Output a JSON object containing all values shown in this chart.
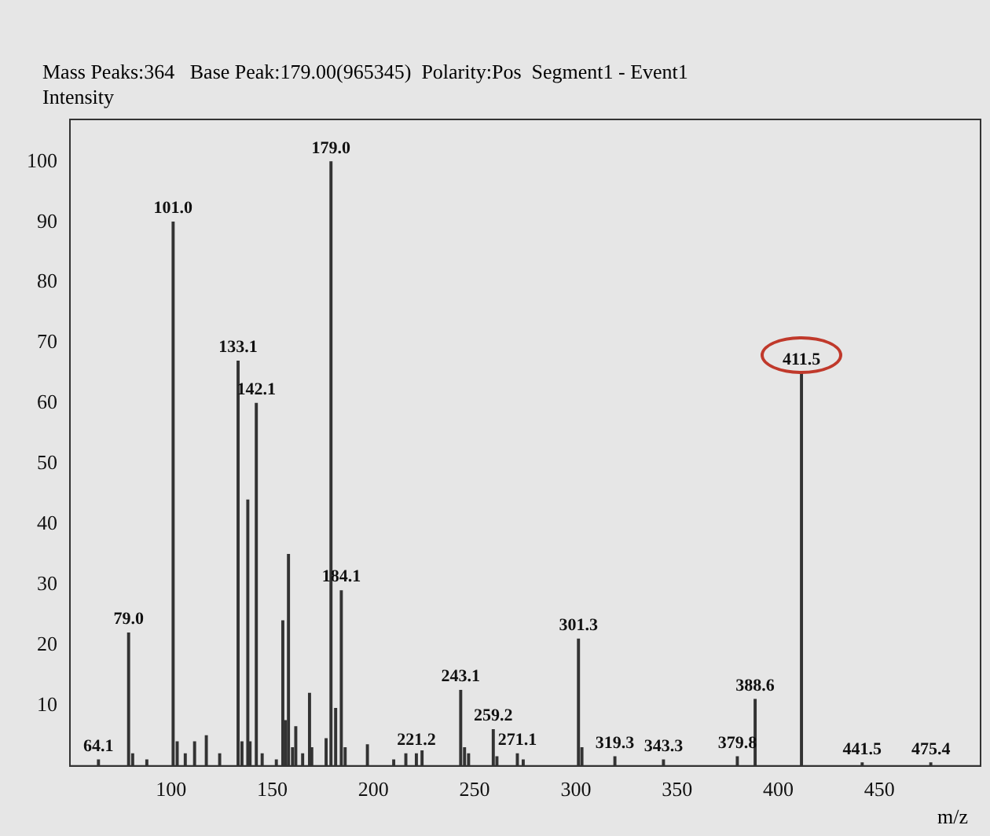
{
  "chart_data": {
    "type": "bar",
    "title": "Mass Peaks:364   Base Peak:179.00(965345)  Polarity:Pos  Segment1 - Event1",
    "ylabel": "Intensity",
    "xlabel": "m/z",
    "x": [
      64.1,
      79.0,
      81,
      88,
      101.0,
      103,
      107,
      111.6,
      117.4,
      124,
      133.1,
      135,
      137.9,
      139,
      142.1,
      145,
      152,
      155.2,
      156.5,
      158,
      160,
      161.6,
      165,
      168.4,
      169.5,
      176.6,
      179.0,
      181.3,
      184.1,
      186,
      197,
      210,
      216,
      221.2,
      224,
      243.1,
      245,
      247,
      259.2,
      261,
      271.1,
      274,
      301.3,
      303,
      319.3,
      343.3,
      379.8,
      388.6,
      411.5,
      441.5,
      475.4
    ],
    "values": [
      1,
      22,
      2,
      1,
      90,
      4,
      2,
      4,
      5,
      2,
      67,
      4,
      44,
      4,
      60,
      2,
      1,
      24,
      7.5,
      35,
      3,
      6.5,
      2,
      12,
      3,
      4.5,
      100,
      9.5,
      29,
      3,
      3.5,
      1,
      2,
      2,
      2.5,
      12.5,
      3,
      2,
      6,
      1.5,
      2,
      1,
      21,
      3,
      1.5,
      1,
      1.5,
      11,
      65,
      0.5,
      0.5
    ],
    "color": "#333333",
    "xlim": [
      50,
      500
    ],
    "xticks": [
      100,
      150,
      200,
      250,
      300,
      350,
      400,
      450
    ],
    "ylim": [
      0,
      107
    ],
    "yticks": [
      10,
      20,
      30,
      40,
      50,
      60,
      70,
      80,
      90,
      100
    ],
    "grid": false,
    "legend": false,
    "annotations": [
      {
        "text": "64.1",
        "x": 64.1,
        "y": 1
      },
      {
        "text": "79.0",
        "x": 79.0,
        "y": 22
      },
      {
        "text": "101.0",
        "x": 101.0,
        "y": 90
      },
      {
        "text": "133.1",
        "x": 133.1,
        "y": 67
      },
      {
        "text": "142.1",
        "x": 142.1,
        "y": 60
      },
      {
        "text": "179.0",
        "x": 179.0,
        "y": 100
      },
      {
        "text": "184.1",
        "x": 184.1,
        "y": 29
      },
      {
        "text": "221.2",
        "x": 221.2,
        "y": 2
      },
      {
        "text": "243.1",
        "x": 243.1,
        "y": 12.5
      },
      {
        "text": "259.2",
        "x": 259.2,
        "y": 6
      },
      {
        "text": "271.1",
        "x": 271.1,
        "y": 2
      },
      {
        "text": "301.3",
        "x": 301.3,
        "y": 21
      },
      {
        "text": "319.3",
        "x": 319.3,
        "y": 1.5
      },
      {
        "text": "343.3",
        "x": 343.3,
        "y": 1
      },
      {
        "text": "379.8",
        "x": 379.8,
        "y": 1.5
      },
      {
        "text": "388.6",
        "x": 388.6,
        "y": 11
      },
      {
        "text": "411.5",
        "x": 411.5,
        "y": 65
      },
      {
        "text": "441.5",
        "x": 441.5,
        "y": 0.5
      },
      {
        "text": "475.4",
        "x": 475.4,
        "y": 0.5
      }
    ]
  }
}
